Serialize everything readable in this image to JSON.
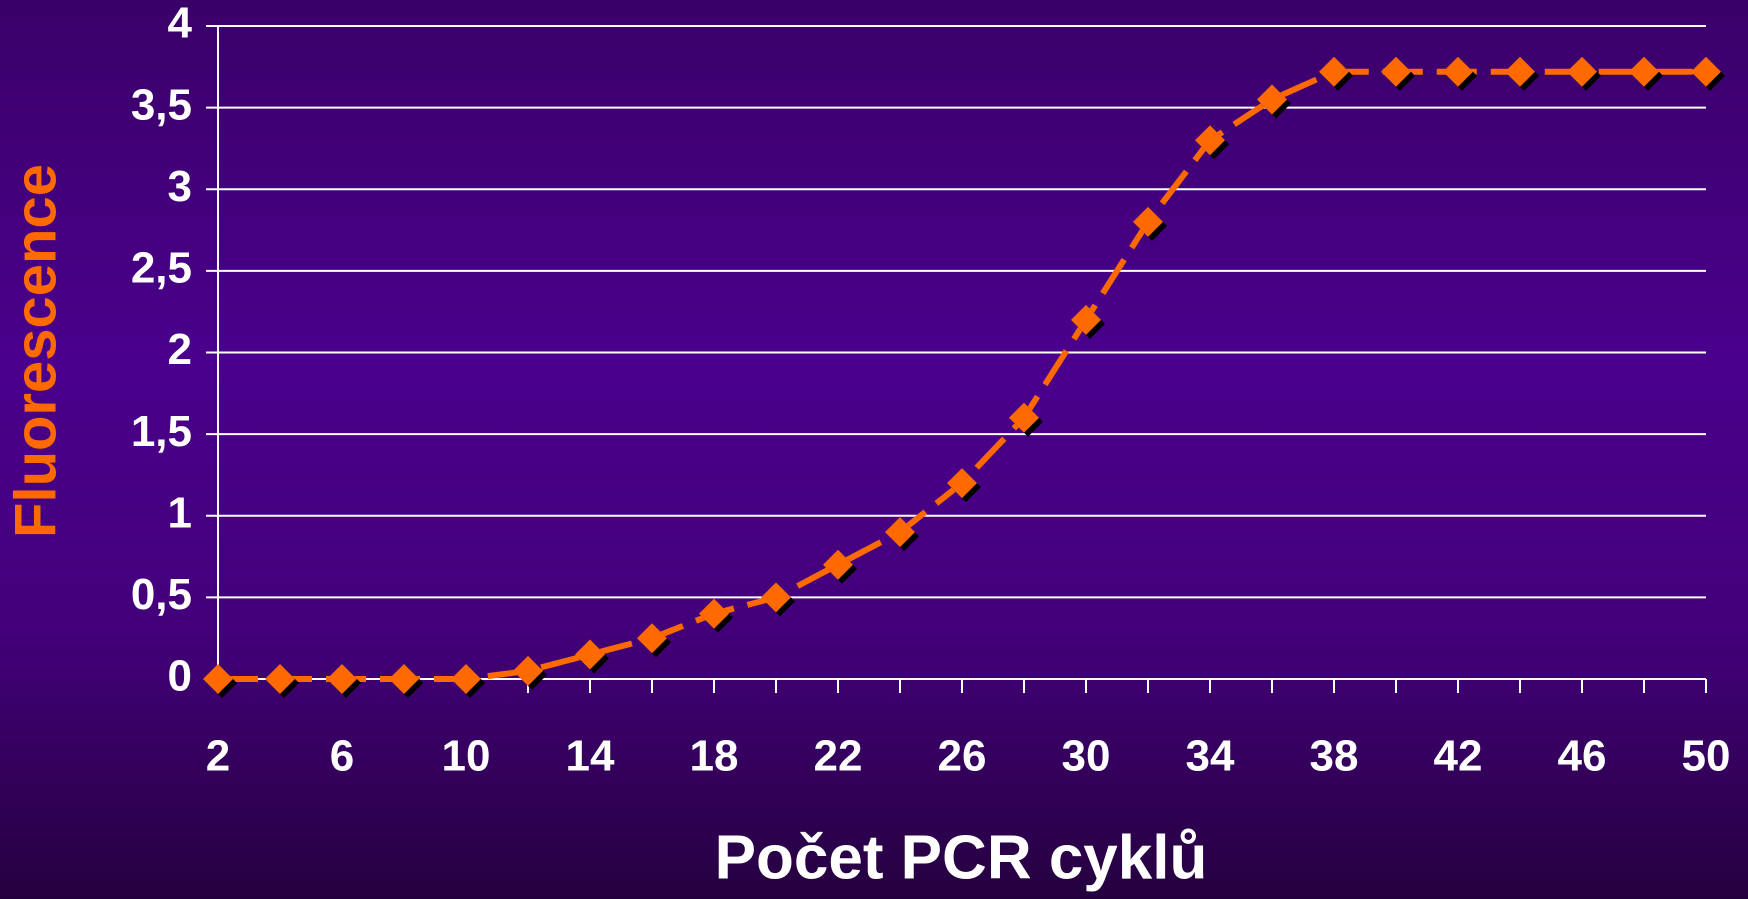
{
  "chart_data": {
    "type": "line",
    "x_label": "Počet PCR cyklů",
    "y_label": "Fluorescence",
    "x": [
      2,
      4,
      6,
      8,
      10,
      12,
      14,
      16,
      18,
      20,
      22,
      24,
      26,
      28,
      30,
      32,
      34,
      36,
      38,
      40,
      42,
      44,
      46,
      48,
      50
    ],
    "series": [
      {
        "color": "#ff6a00",
        "values": [
          0,
          0,
          0,
          0,
          0,
          0.05,
          0.15,
          0.25,
          0.4,
          0.5,
          0.7,
          0.9,
          1.2,
          1.6,
          2.2,
          2.8,
          3.3,
          3.55,
          3.72,
          3.72,
          3.72,
          3.72,
          3.72,
          3.72,
          3.72
        ]
      }
    ],
    "xlim": [
      2,
      50
    ],
    "xticks": [
      2,
      6,
      10,
      14,
      18,
      22,
      26,
      30,
      34,
      38,
      42,
      46,
      50
    ],
    "ylim": [
      0,
      4
    ],
    "yticks": [
      0,
      {
        "value": 0.5,
        "label": "0,5"
      },
      1,
      {
        "value": 1.5,
        "label": "1,5"
      },
      2,
      {
        "value": 2.5,
        "label": "2,5"
      },
      3,
      {
        "value": 3.5,
        "label": "3,5"
      },
      4
    ],
    "grid": true
  }
}
